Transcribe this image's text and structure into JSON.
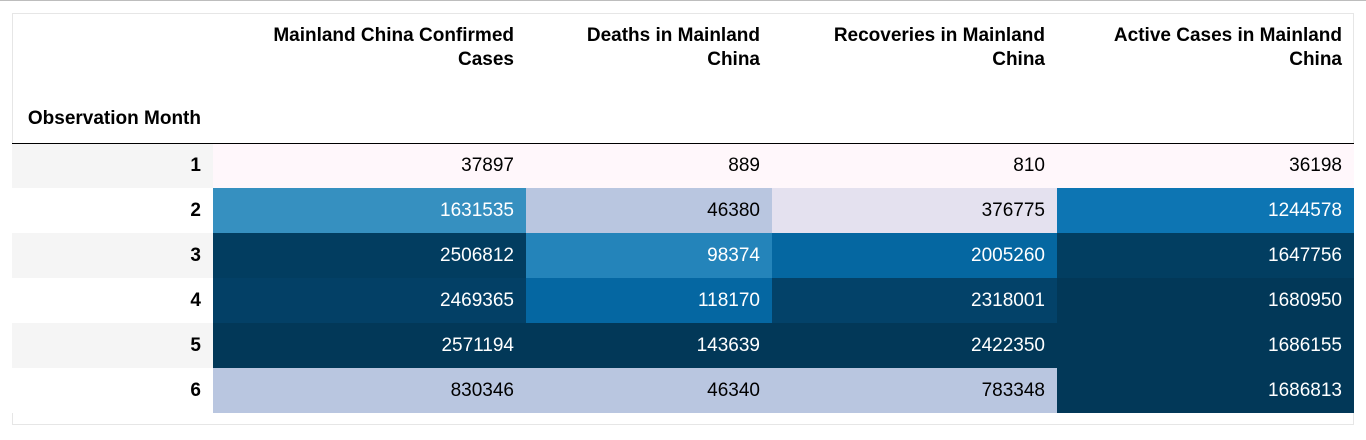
{
  "table": {
    "index_header": "Observation Month",
    "columns": [
      "Mainland China Confirmed Cases",
      "Deaths in Mainland China",
      "Recoveries in Mainland China",
      "Active Cases in Mainland China"
    ],
    "rows": [
      {
        "month": "1",
        "cells": [
          {
            "value": "37897",
            "bg": "#fff7fb",
            "fg": "#000000"
          },
          {
            "value": "889",
            "bg": "#fff7fb",
            "fg": "#000000"
          },
          {
            "value": "810",
            "bg": "#fff7fb",
            "fg": "#000000"
          },
          {
            "value": "36198",
            "bg": "#fff7fb",
            "fg": "#000000"
          }
        ]
      },
      {
        "month": "2",
        "cells": [
          {
            "value": "1631535",
            "bg": "#3690c0",
            "fg": "#ffffff"
          },
          {
            "value": "46380",
            "bg": "#b9c6e0",
            "fg": "#000000"
          },
          {
            "value": "376775",
            "bg": "#e4e1ef",
            "fg": "#000000"
          },
          {
            "value": "1244578",
            "bg": "#0d75b3",
            "fg": "#ffffff"
          }
        ]
      },
      {
        "month": "3",
        "cells": [
          {
            "value": "2506812",
            "bg": "#023d60",
            "fg": "#ffffff"
          },
          {
            "value": "98374",
            "bg": "#2484ba",
            "fg": "#ffffff"
          },
          {
            "value": "2005260",
            "bg": "#0567a1",
            "fg": "#ffffff"
          },
          {
            "value": "1647756",
            "bg": "#023e61",
            "fg": "#ffffff"
          }
        ]
      },
      {
        "month": "4",
        "cells": [
          {
            "value": "2469365",
            "bg": "#034066",
            "fg": "#ffffff"
          },
          {
            "value": "118170",
            "bg": "#0567a2",
            "fg": "#ffffff"
          },
          {
            "value": "2318001",
            "bg": "#034269",
            "fg": "#ffffff"
          },
          {
            "value": "1680950",
            "bg": "#023858",
            "fg": "#ffffff"
          }
        ]
      },
      {
        "month": "5",
        "cells": [
          {
            "value": "2571194",
            "bg": "#023858",
            "fg": "#ffffff"
          },
          {
            "value": "143639",
            "bg": "#023858",
            "fg": "#ffffff"
          },
          {
            "value": "2422350",
            "bg": "#023858",
            "fg": "#ffffff"
          },
          {
            "value": "1686155",
            "bg": "#023858",
            "fg": "#ffffff"
          }
        ]
      },
      {
        "month": "6",
        "cells": [
          {
            "value": "830346",
            "bg": "#b9c6e0",
            "fg": "#000000"
          },
          {
            "value": "46340",
            "bg": "#b9c6e0",
            "fg": "#000000"
          },
          {
            "value": "783348",
            "bg": "#b9c6e0",
            "fg": "#000000"
          },
          {
            "value": "1686813",
            "bg": "#023858",
            "fg": "#ffffff"
          }
        ]
      }
    ]
  }
}
